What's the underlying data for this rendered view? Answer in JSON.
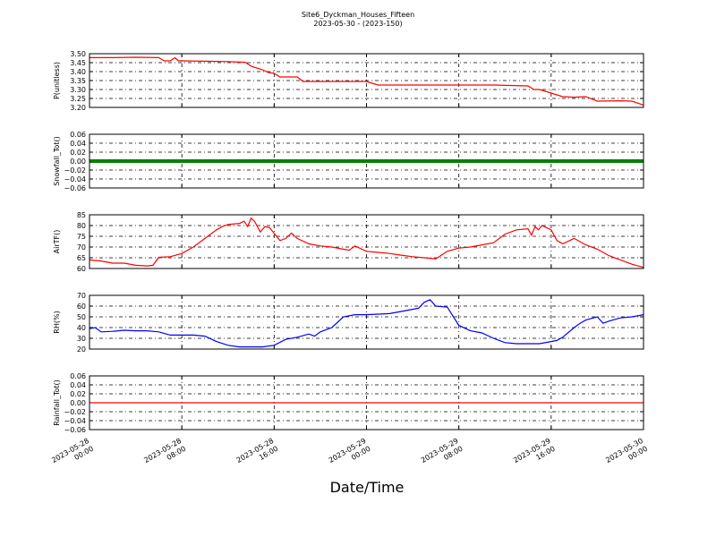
{
  "figure": {
    "title": "Site6_Dyckman_Houses_Fifteen",
    "subtitle": "2023-05-30 - (2023-150)",
    "xlabel": "Date/Time"
  },
  "chart_data": [
    {
      "type": "line",
      "ylabel": "P(unitless)",
      "xlim": [
        0,
        48
      ],
      "ylim": [
        3.2,
        3.5
      ],
      "yticks": [
        "3.50",
        "3.45",
        "3.40",
        "3.35",
        "3.30",
        "3.25",
        "3.20"
      ],
      "ytick_values": [
        3.5,
        3.45,
        3.4,
        3.35,
        3.3,
        3.25,
        3.2
      ],
      "grid": true,
      "color": "#ff0000",
      "series": [
        {
          "x": [
            0,
            2,
            4,
            6,
            6.2,
            6.5,
            7,
            7.4,
            7.7,
            8,
            10,
            12,
            13.5,
            14,
            15,
            15.5,
            16,
            16.5,
            18,
            18.5,
            20,
            24,
            25,
            28,
            30,
            35,
            38,
            38.5,
            39,
            40,
            41,
            42,
            43,
            44,
            46,
            47,
            48
          ],
          "y": [
            3.478,
            3.478,
            3.48,
            3.478,
            3.47,
            3.46,
            3.46,
            3.478,
            3.46,
            3.46,
            3.458,
            3.456,
            3.452,
            3.43,
            3.41,
            3.395,
            3.39,
            3.37,
            3.37,
            3.345,
            3.345,
            3.345,
            3.325,
            3.325,
            3.325,
            3.325,
            3.32,
            3.3,
            3.3,
            3.28,
            3.26,
            3.257,
            3.26,
            3.235,
            3.237,
            3.235,
            3.213
          ]
        }
      ]
    },
    {
      "type": "line",
      "ylabel": "Snowfall_Tot()",
      "xlim": [
        0,
        48
      ],
      "ylim": [
        -0.06,
        0.06
      ],
      "yticks": [
        "0.06",
        "0.04",
        "0.02",
        "0.00",
        "−0.02",
        "−0.04",
        "−0.06"
      ],
      "ytick_values": [
        0.06,
        0.04,
        0.02,
        0,
        -0.02,
        -0.04,
        -0.06
      ],
      "grid": true,
      "color": "#008000",
      "series": [
        {
          "x": [
            0,
            48
          ],
          "y": [
            0,
            0
          ]
        }
      ]
    },
    {
      "type": "line",
      "ylabel": "AirTF()",
      "xlim": [
        0,
        48
      ],
      "ylim": [
        60,
        85
      ],
      "yticks": [
        "85",
        "80",
        "75",
        "70",
        "65",
        "60"
      ],
      "ytick_values": [
        85,
        80,
        75,
        70,
        65,
        60
      ],
      "grid": true,
      "color": "#ff0000",
      "series": [
        {
          "x": [
            0,
            1,
            2,
            3,
            4,
            5,
            5.5,
            6,
            7,
            8,
            9,
            10,
            11,
            11.5,
            12,
            13,
            13.4,
            13.7,
            14,
            14.3,
            14.8,
            15.2,
            15.6,
            16.5,
            17,
            17.5,
            18,
            19,
            20,
            21,
            22,
            22.5,
            23,
            24,
            25,
            26,
            27,
            28,
            29,
            30,
            31,
            32,
            33,
            34,
            35,
            36,
            37,
            38,
            38.3,
            38.6,
            38.9,
            39.2,
            40,
            40.5,
            41,
            42,
            43,
            44,
            45,
            46,
            47,
            48
          ],
          "y": [
            64,
            63.5,
            62.5,
            62.5,
            61.5,
            61.2,
            61.5,
            65.2,
            65.5,
            67,
            70,
            74,
            78,
            79.5,
            80.5,
            81,
            82,
            79.5,
            83.5,
            82,
            77,
            79.5,
            79,
            73,
            74,
            76.5,
            74,
            71.5,
            70.5,
            70,
            69,
            68.5,
            70.5,
            68,
            67.5,
            67,
            66.2,
            65.5,
            65,
            64.5,
            68,
            69.5,
            70,
            71,
            72,
            76,
            78,
            78.5,
            75.5,
            79.5,
            78,
            80,
            78,
            73,
            71.5,
            74,
            71,
            69,
            66,
            64,
            62,
            60.5
          ]
        }
      ]
    },
    {
      "type": "line",
      "ylabel": "RH(%)",
      "xlim": [
        0,
        48
      ],
      "ylim": [
        20,
        70
      ],
      "yticks": [
        "70",
        "60",
        "50",
        "40",
        "30",
        "20"
      ],
      "ytick_values": [
        70,
        60,
        50,
        40,
        30,
        20
      ],
      "grid": true,
      "color": "#0000ff",
      "series": [
        {
          "x": [
            0,
            0.5,
            1,
            2,
            3,
            4,
            5,
            6,
            7,
            8,
            9,
            10,
            11,
            12,
            13,
            14,
            15,
            16,
            17,
            18,
            19,
            19.5,
            20,
            21,
            21.5,
            22,
            23,
            24,
            25,
            26,
            27,
            28,
            28.5,
            29,
            29.5,
            30,
            31,
            32,
            33,
            34,
            35,
            36,
            37,
            38,
            39,
            40,
            40.5,
            41,
            42,
            42.5,
            43,
            44,
            44.5,
            45,
            46,
            47,
            48
          ],
          "y": [
            39,
            40,
            36,
            36.5,
            37.5,
            37,
            37,
            36,
            33,
            33,
            33,
            32,
            27,
            23.5,
            22,
            22,
            22,
            23.5,
            29,
            31,
            34,
            32,
            36,
            40,
            45,
            50,
            52,
            52,
            52.5,
            53,
            55,
            57,
            58,
            63.5,
            66,
            60,
            59,
            42,
            37,
            35,
            30,
            26,
            25,
            25,
            25,
            27,
            28,
            31,
            40,
            44,
            47,
            50,
            44,
            46,
            49,
            50,
            52
          ]
        }
      ]
    },
    {
      "type": "line",
      "ylabel": "Rainfall_Tot()",
      "xlim": [
        0,
        48
      ],
      "ylim": [
        -0.06,
        0.06
      ],
      "yticks": [
        "0.06",
        "0.04",
        "0.02",
        "0.00",
        "−0.02",
        "−0.04",
        "−0.06"
      ],
      "ytick_values": [
        0.06,
        0.04,
        0.02,
        0,
        -0.02,
        -0.04,
        -0.06
      ],
      "grid": true,
      "color": "#ff0000",
      "series": [
        {
          "x": [
            0,
            48
          ],
          "y": [
            0,
            0
          ]
        }
      ]
    }
  ],
  "xticks": [
    {
      "value": 0,
      "date": "2023-05-28",
      "time": "00:00"
    },
    {
      "value": 8,
      "date": "2023-05-28",
      "time": "08:00"
    },
    {
      "value": 16,
      "date": "2023-05-28",
      "time": "16:00"
    },
    {
      "value": 24,
      "date": "2023-05-29",
      "time": "00:00"
    },
    {
      "value": 32,
      "date": "2023-05-29",
      "time": "08:00"
    },
    {
      "value": 40,
      "date": "2023-05-29",
      "time": "16:00"
    },
    {
      "value": 48,
      "date": "2023-05-30",
      "time": "00:00"
    }
  ]
}
